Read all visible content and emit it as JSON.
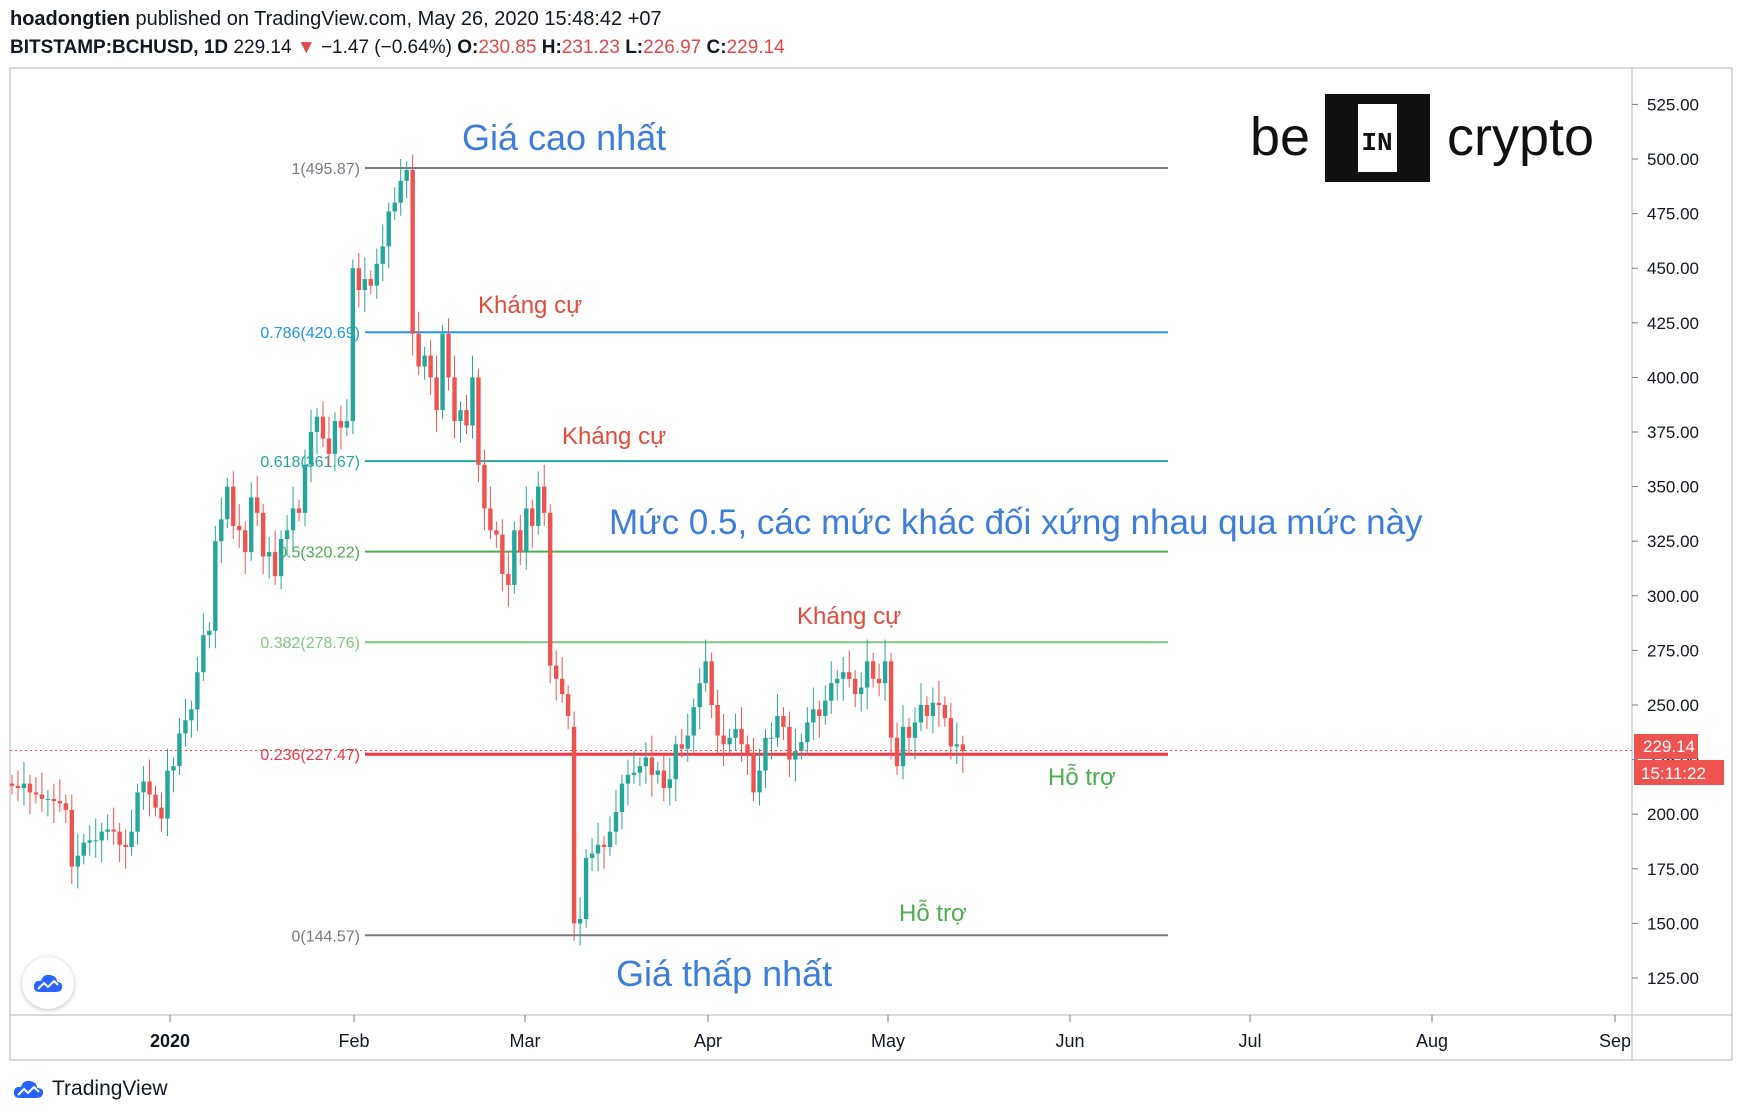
{
  "header": {
    "author": "hoadongtien",
    "published_text": " published on TradingView.com, May 26, 2020 15:48:42 +07",
    "symbol": "BITSTAMP:BCHUSD, 1D",
    "last": "229.14",
    "change_arrow": "▼",
    "change": "−1.47 (−0.64%)",
    "o_label": "O:",
    "o_val": "230.85",
    "h_label": "H:",
    "h_val": "231.23",
    "l_label": "L:",
    "l_val": "226.97",
    "c_label": "C:",
    "c_val": "229.14"
  },
  "footer": {
    "brand": "TradingView"
  },
  "logo": {
    "left": "be",
    "mid": "IN",
    "right": "crypto"
  },
  "price_tag": {
    "price": "229.14",
    "timer": "15:11:22"
  },
  "colors": {
    "up": "#26a69a",
    "down": "#ef5350",
    "grid": "#e6e6e6",
    "fib_0": "#787b86",
    "fib_0236": "#f23645",
    "fib_0382": "#81c784",
    "fib_05": "#4caf50",
    "fib_0618": "#26a69a",
    "fib_0786": "#2196f3",
    "fib_1": "#787b86",
    "annotation_blue": "#3d7ddb",
    "annotation_red": "#e34a3a",
    "annotation_green": "#4caf50"
  },
  "chart_data": {
    "type": "candlestick",
    "y_ticks": [
      "525.00",
      "500.00",
      "475.00",
      "450.00",
      "425.00",
      "400.00",
      "375.00",
      "350.00",
      "325.00",
      "300.00",
      "275.00",
      "250.00",
      "225.00",
      "200.00",
      "175.00",
      "150.00",
      "125.00"
    ],
    "ylim": [
      110,
      540
    ],
    "x_ticks": [
      "2020",
      "Feb",
      "Mar",
      "Apr",
      "May",
      "Jun",
      "Jul",
      "Aug",
      "Sep"
    ],
    "fib_levels": [
      {
        "label": "1(495.87)",
        "ratio": 1,
        "value": 495.87
      },
      {
        "label": "0.786(420.69)",
        "ratio": 0.786,
        "value": 420.69
      },
      {
        "label": "0.618(361.67)",
        "ratio": 0.618,
        "value": 361.67
      },
      {
        "label": "0.5(320.22)",
        "ratio": 0.5,
        "value": 320.22
      },
      {
        "label": "0.382(278.76)",
        "ratio": 0.382,
        "value": 278.76
      },
      {
        "label": "0.236(227.47)",
        "ratio": 0.236,
        "value": 227.47
      },
      {
        "label": "0(144.57)",
        "ratio": 0,
        "value": 144.57
      }
    ],
    "annotations": [
      {
        "text": "Giá cao nhất",
        "color": "blue"
      },
      {
        "text": "Kháng cự",
        "color": "red"
      },
      {
        "text": "Kháng cự",
        "color": "red"
      },
      {
        "text": "Mức 0.5, các mức khác đối xứng nhau qua mức này",
        "color": "blue"
      },
      {
        "text": "Kháng cự",
        "color": "red"
      },
      {
        "text": "Hỗ trợ",
        "color": "green"
      },
      {
        "text": "Hỗ trợ",
        "color": "green"
      },
      {
        "text": "Giá thấp nhất",
        "color": "blue"
      }
    ],
    "last_price": 229.14,
    "series_close_approx": [
      213,
      212,
      214,
      210,
      209,
      207,
      207,
      206,
      205,
      202,
      176,
      181,
      187,
      188,
      188,
      192,
      193,
      192,
      186,
      185,
      192,
      210,
      215,
      209,
      203,
      198,
      220,
      222,
      237,
      243,
      248,
      265,
      282,
      284,
      325,
      335,
      350,
      332,
      330,
      320,
      345,
      338,
      318,
      320,
      309,
      326,
      330,
      340,
      338,
      360,
      375,
      382,
      372,
      365,
      380,
      377,
      380,
      450,
      440,
      445,
      442,
      452,
      460,
      476,
      480,
      490,
      495,
      420,
      405,
      410,
      400,
      385,
      420,
      400,
      380,
      385,
      378,
      400,
      360,
      340,
      330,
      328,
      310,
      305,
      330,
      320,
      340,
      332,
      350,
      338,
      268,
      262,
      255,
      245,
      150,
      152,
      180,
      182,
      186,
      185,
      192,
      201,
      214,
      218,
      219,
      222,
      226,
      218,
      220,
      212,
      216,
      232,
      230,
      236,
      249,
      260,
      270,
      250,
      236,
      232,
      235,
      239,
      232,
      228,
      210,
      220,
      235,
      235,
      245,
      240,
      225,
      229,
      233,
      242,
      248,
      245,
      252,
      260,
      262,
      265,
      262,
      255,
      258,
      270,
      262,
      260,
      270,
      235,
      222,
      240,
      235,
      242,
      250,
      245,
      251,
      250,
      244,
      231,
      232,
      229
    ],
    "trend": "sharp rally to 495.87 mid-Feb, crash to 144.57 mid-Mar, recovery ranging 215-275 through May"
  }
}
